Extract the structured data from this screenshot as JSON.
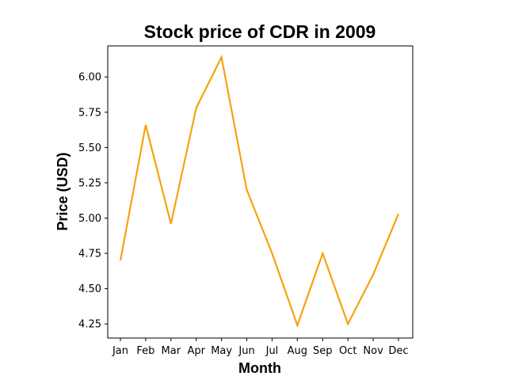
{
  "chart_data": {
    "type": "line",
    "title": "Stock price of CDR in 2009",
    "xlabel": "Month",
    "ylabel": "Price (USD)",
    "categories": [
      "Jan",
      "Feb",
      "Mar",
      "Apr",
      "May",
      "Jun",
      "Jul",
      "Aug",
      "Sep",
      "Oct",
      "Nov",
      "Dec"
    ],
    "series": [
      {
        "values": [
          4.7,
          5.66,
          4.96,
          5.78,
          6.14,
          5.2,
          4.75,
          4.24,
          4.75,
          4.25,
          4.6,
          5.03
        ],
        "color": "#f5a30f"
      }
    ],
    "ylim": [
      4.15,
      6.22
    ],
    "yticks": [
      4.25,
      4.5,
      4.75,
      5.0,
      5.25,
      5.5,
      5.75,
      6.0
    ],
    "ytick_labels": [
      "4.25",
      "4.50",
      "4.75",
      "5.00",
      "5.25",
      "5.50",
      "5.75",
      "6.00"
    ],
    "grid": false,
    "legend": "none"
  }
}
